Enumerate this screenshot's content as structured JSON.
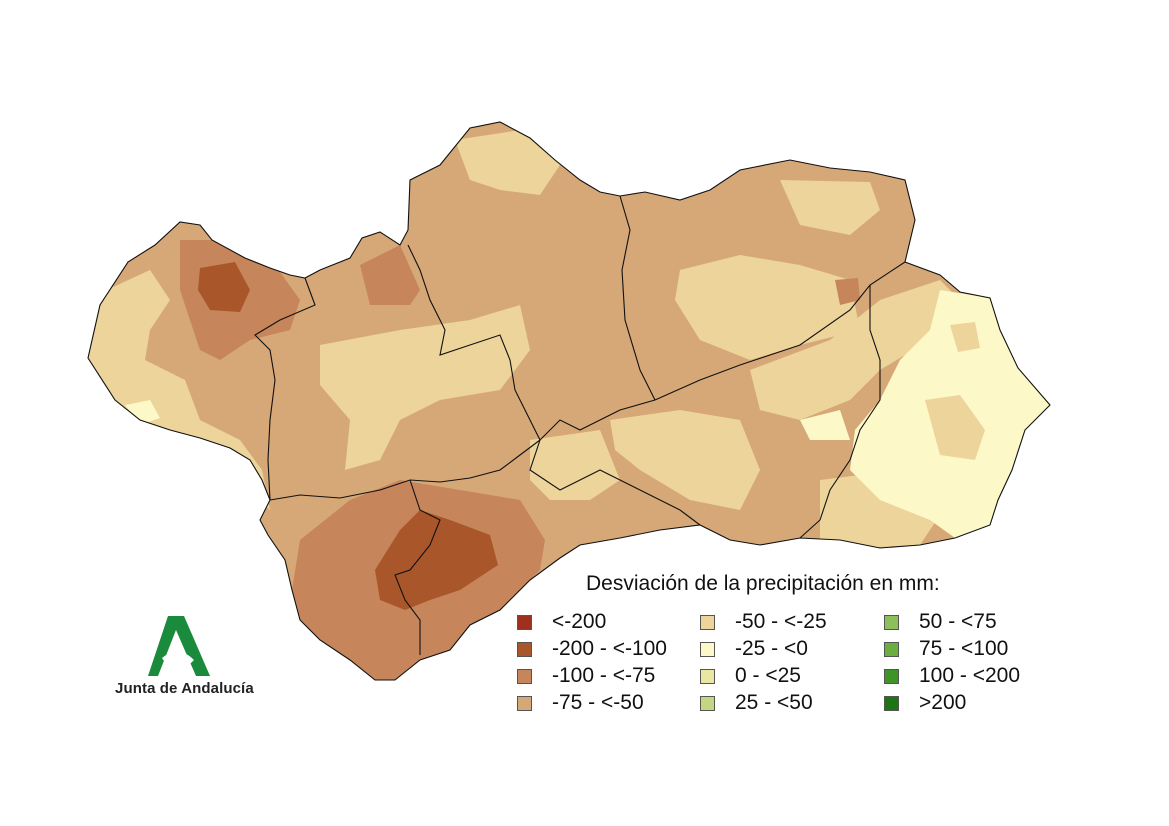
{
  "legend": {
    "title": "Desviación de la precipitación en mm:",
    "classes": [
      {
        "label": "<-200",
        "color": "#a0301e"
      },
      {
        "label": "-200 - <-100",
        "color": "#a9562a"
      },
      {
        "label": "-100 - <-75",
        "color": "#c6855b"
      },
      {
        "label": "-75 - <-50",
        "color": "#d6a877"
      },
      {
        "label": "-50 - <-25",
        "color": "#ecd49b"
      },
      {
        "label": "-25 - <0",
        "color": "#fdf8c8"
      },
      {
        "label": "0 - <25",
        "color": "#eae7a3"
      },
      {
        "label": "25 - <50",
        "color": "#c3d781"
      },
      {
        "label": "50 - <75",
        "color": "#8dbf5a"
      },
      {
        "label": "75 - <100",
        "color": "#6cae40"
      },
      {
        "label": "100 - <200",
        "color": "#3e9427"
      },
      {
        "label": ">200",
        "color": "#1c7414"
      }
    ]
  },
  "logo": {
    "text": "Junta de Andalucía",
    "color": "#1a8a3c"
  },
  "map": {
    "region_colors": {
      "very_dry": "#a9562a",
      "dry": "#c6855b",
      "moderate": "#d6a877",
      "mild": "#ecd49b",
      "slight": "#fdf8c8"
    }
  }
}
